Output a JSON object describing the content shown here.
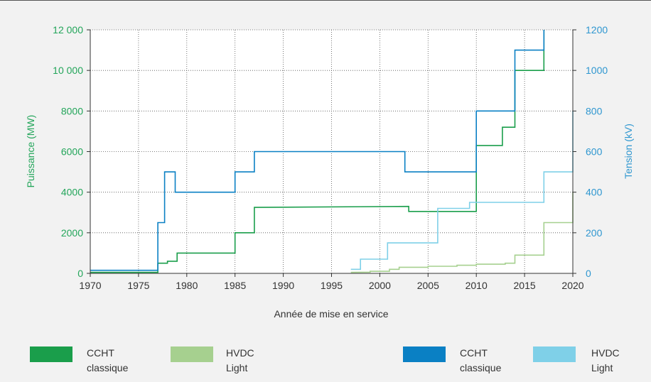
{
  "chart_data": {
    "type": "line",
    "title": "",
    "xlabel": "Année de mise en service",
    "ylabel_left": "Puissance (MW)",
    "ylabel_right": "Tension (kV)",
    "xlim": [
      1970,
      2020
    ],
    "ylim_left": [
      0,
      12000
    ],
    "ylim_right": [
      0,
      1200
    ],
    "x_ticks": [
      "1970",
      "1975",
      "1980",
      "1985",
      "1990",
      "1995",
      "2000",
      "2005",
      "2010",
      "2015",
      "2020"
    ],
    "x_tick_values": [
      1970,
      1975,
      1980,
      1985,
      1990,
      1995,
      2000,
      2005,
      2010,
      2015,
      2020
    ],
    "y_left_ticks": [
      "0",
      "2000",
      "4000",
      "6000",
      "8000",
      "10 000",
      "12 000"
    ],
    "y_left_tick_values": [
      0,
      2000,
      4000,
      6000,
      8000,
      10000,
      12000
    ],
    "y_right_ticks": [
      "0",
      "200",
      "400",
      "600",
      "800",
      "1000",
      "1200"
    ],
    "y_right_tick_values": [
      0,
      200,
      400,
      600,
      800,
      1000,
      1200
    ],
    "grid": true,
    "legend_position": "bottom",
    "colors": {
      "power_classic": "#1a9e4b",
      "power_light": "#a6d08f",
      "voltage_classic": "#0a80c4",
      "voltage_light": "#7fd0e8",
      "left_axis_text": "#23a55a",
      "right_axis_text": "#2f97d0"
    },
    "series": [
      {
        "name": "CCHT classique",
        "axis": "left",
        "key": "power_classic",
        "points": [
          [
            1970,
            50
          ],
          [
            1977,
            50
          ],
          [
            1977,
            500
          ],
          [
            1978,
            500
          ],
          [
            1978,
            600
          ],
          [
            1979,
            600
          ],
          [
            1979,
            1000
          ],
          [
            1985,
            1000
          ],
          [
            1985,
            2000
          ],
          [
            1987,
            2000
          ],
          [
            1987,
            3250
          ],
          [
            2003,
            3300
          ],
          [
            2003,
            3050
          ],
          [
            2010,
            3050
          ],
          [
            2010,
            6300
          ],
          [
            2012.7,
            6300
          ],
          [
            2012.7,
            7200
          ],
          [
            2014,
            7200
          ],
          [
            2014,
            10000
          ],
          [
            2017,
            10000
          ],
          [
            2017,
            12000
          ]
        ]
      },
      {
        "name": "HVDC Light",
        "axis": "left",
        "key": "power_light",
        "points": [
          [
            1997,
            50
          ],
          [
            1999,
            60
          ],
          [
            1999,
            100
          ],
          [
            2001,
            100
          ],
          [
            2001,
            200
          ],
          [
            2002,
            200
          ],
          [
            2002,
            300
          ],
          [
            2005,
            300
          ],
          [
            2005,
            350
          ],
          [
            2008,
            350
          ],
          [
            2008,
            400
          ],
          [
            2010,
            400
          ],
          [
            2010,
            450
          ],
          [
            2013,
            450
          ],
          [
            2013,
            500
          ],
          [
            2014,
            500
          ],
          [
            2014,
            900
          ],
          [
            2017,
            900
          ],
          [
            2017,
            2500
          ],
          [
            2020,
            2500
          ],
          [
            2020,
            4000
          ]
        ]
      },
      {
        "name": "CCHT classique",
        "axis": "right",
        "key": "voltage_classic",
        "points": [
          [
            1970,
            15
          ],
          [
            1977,
            15
          ],
          [
            1977,
            250
          ],
          [
            1977.7,
            250
          ],
          [
            1977.7,
            500
          ],
          [
            1978.8,
            500
          ],
          [
            1978.8,
            400
          ],
          [
            1985,
            400
          ],
          [
            1985,
            500
          ],
          [
            1987,
            500
          ],
          [
            1987,
            600
          ],
          [
            2002.6,
            600
          ],
          [
            2002.6,
            500
          ],
          [
            2010,
            500
          ],
          [
            2010,
            800
          ],
          [
            2014,
            800
          ],
          [
            2014,
            1100
          ],
          [
            2017,
            1100
          ],
          [
            2017,
            1200
          ]
        ]
      },
      {
        "name": "HVDC Light",
        "axis": "right",
        "key": "voltage_light",
        "points": [
          [
            1997,
            20
          ],
          [
            1998,
            20
          ],
          [
            1998,
            70
          ],
          [
            2000.8,
            70
          ],
          [
            2000.8,
            150
          ],
          [
            2006,
            150
          ],
          [
            2006,
            320
          ],
          [
            2009.3,
            320
          ],
          [
            2009.3,
            350
          ],
          [
            2017,
            350
          ],
          [
            2017,
            500
          ],
          [
            2020,
            500
          ],
          [
            2020,
            800
          ]
        ]
      }
    ]
  },
  "legend": [
    {
      "line1": "CCHT",
      "line2": "classique",
      "key": "power_classic"
    },
    {
      "line1": "HVDC",
      "line2": "Light",
      "key": "power_light"
    },
    {
      "line1": "CCHT",
      "line2": "classique",
      "key": "voltage_classic"
    },
    {
      "line1": "HVDC",
      "line2": "Light",
      "key": "voltage_light"
    }
  ]
}
